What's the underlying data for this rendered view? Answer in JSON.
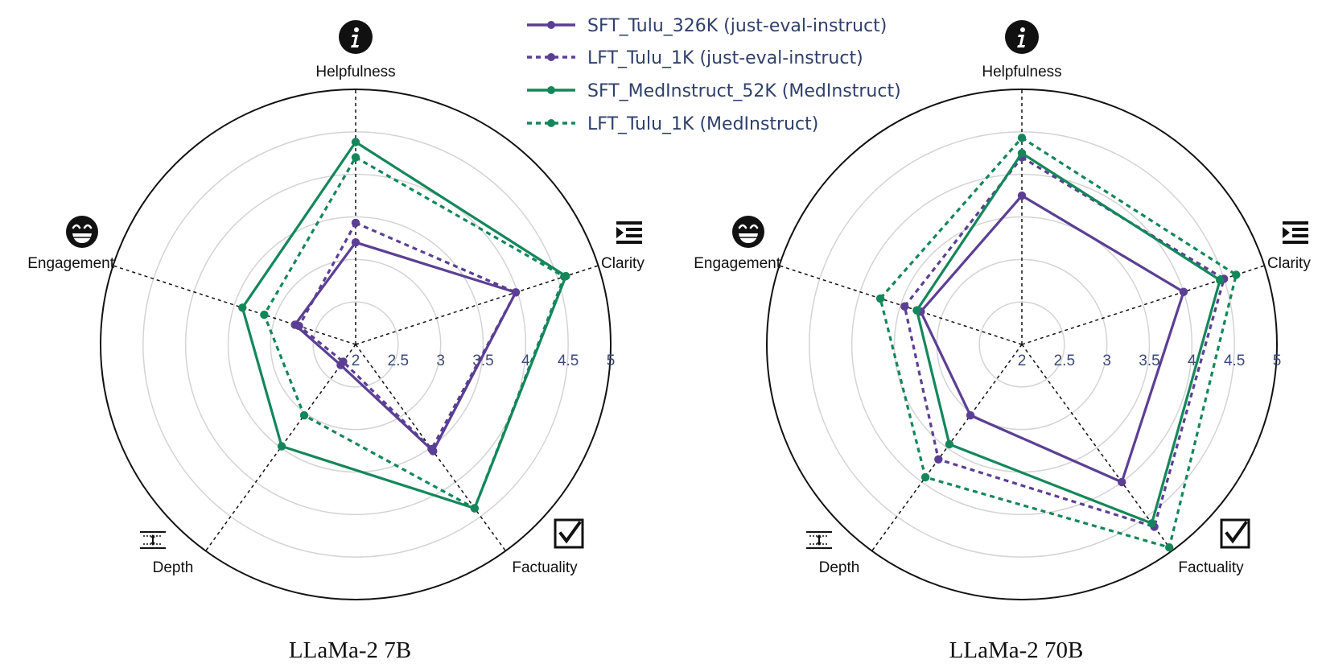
{
  "legend": [
    {
      "label": "SFT_Tulu_326K (just-eval-instruct)",
      "color": "#5b3f94",
      "dashed": false
    },
    {
      "label": "LFT_Tulu_1K (just-eval-instruct)",
      "color": "#5b3f94",
      "dashed": true
    },
    {
      "label": "SFT_MedInstruct_52K (MedInstruct)",
      "color": "#14875a",
      "dashed": false
    },
    {
      "label": "LFT_Tulu_1K (MedInstruct)",
      "color": "#14875a",
      "dashed": true
    }
  ],
  "axis_icons": {
    "Helpfulness": "info-icon",
    "Clarity": "indent-icon",
    "Factuality": "checkbox-icon",
    "Depth": "depth-icon",
    "Engagement": "grin-emoji-icon"
  },
  "chart_data": [
    {
      "type": "radar",
      "title": "LLaMa-2 7B",
      "axes": [
        "Helpfulness",
        "Clarity",
        "Factuality",
        "Depth",
        "Engagement"
      ],
      "ticks": [
        "2",
        "2.5",
        "3",
        "3.5",
        "4",
        "4.5",
        "5"
      ],
      "range": [
        2,
        5
      ],
      "grid": true,
      "series": [
        {
          "name": "SFT_Tulu_326K (just-eval-instruct)",
          "values": [
            3.2,
            3.98,
            3.55,
            2.3,
            2.75
          ]
        },
        {
          "name": "LFT_Tulu_1K (just-eval-instruct)",
          "values": [
            3.43,
            3.98,
            3.52,
            2.25,
            2.7
          ]
        },
        {
          "name": "SFT_MedInstruct_52K (MedInstruct)",
          "values": [
            4.38,
            4.6,
            4.38,
            3.48,
            3.4
          ]
        },
        {
          "name": "LFT_Tulu_1K (MedInstruct)",
          "values": [
            4.2,
            4.58,
            4.38,
            3.03,
            3.13
          ]
        }
      ]
    },
    {
      "type": "radar",
      "title": "LLaMa-2 70B",
      "axes": [
        "Helpfulness",
        "Clarity",
        "Factuality",
        "Depth",
        "Engagement"
      ],
      "ticks": [
        "2",
        "2.5",
        "3",
        "3.5",
        "4",
        "4.5",
        "5"
      ],
      "range": [
        2,
        5
      ],
      "grid": true,
      "series": [
        {
          "name": "SFT_Tulu_326K (just-eval-instruct)",
          "values": [
            3.75,
            4.0,
            4.0,
            3.03,
            3.25
          ]
        },
        {
          "name": "LFT_Tulu_1K (just-eval-instruct)",
          "values": [
            4.2,
            4.5,
            4.65,
            3.67,
            3.45
          ]
        },
        {
          "name": "SFT_MedInstruct_52K (MedInstruct)",
          "values": [
            4.25,
            4.45,
            4.6,
            3.45,
            3.3
          ]
        },
        {
          "name": "LFT_Tulu_1K (MedInstruct)",
          "values": [
            4.43,
            4.65,
            4.95,
            3.93,
            3.75
          ]
        }
      ]
    }
  ]
}
